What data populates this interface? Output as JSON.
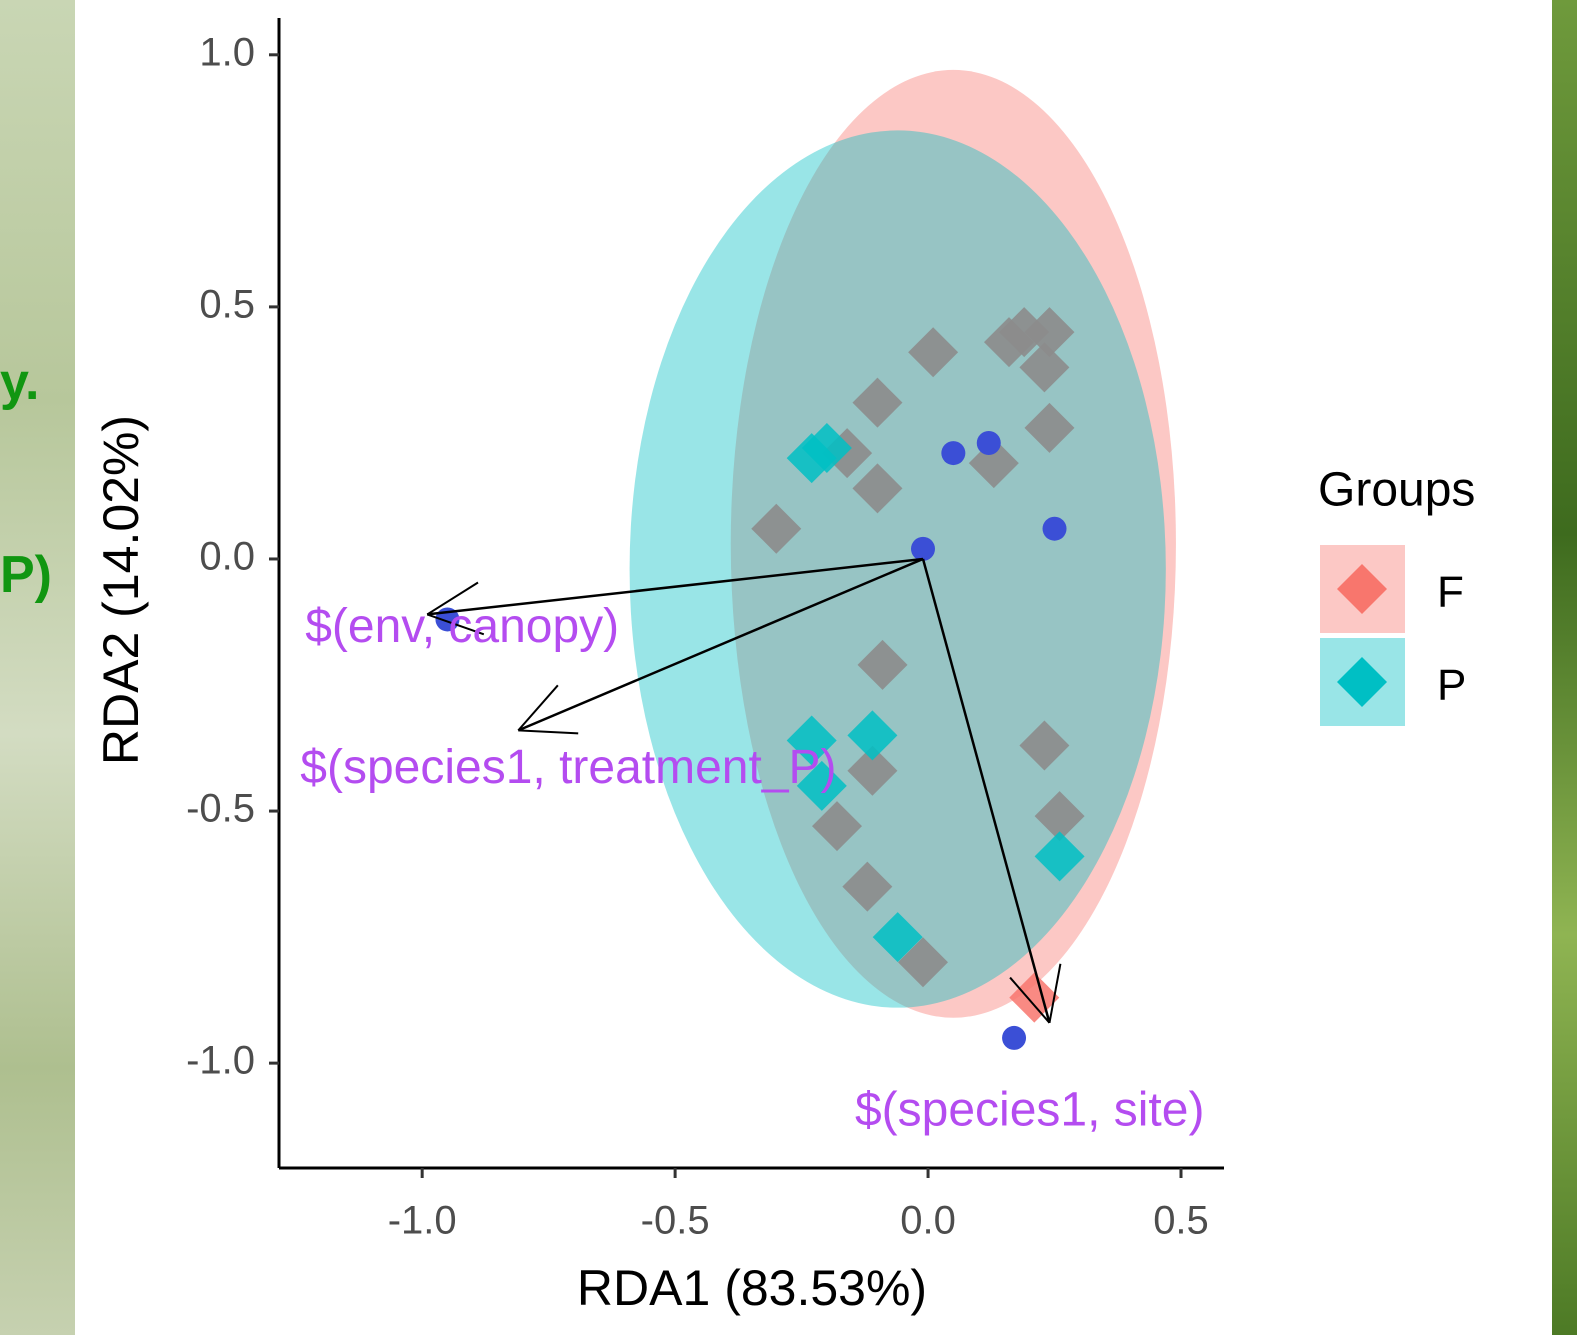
{
  "slide": {
    "fragments": [
      "y.",
      "P)"
    ]
  },
  "chart_data": {
    "type": "scatter",
    "xlabel": "RDA1 (83.53%)",
    "ylabel": "RDA2 (14.02%)",
    "legend_title": "Groups",
    "legend": "right",
    "xlim": [
      -1.283,
      0.585
    ],
    "ylim": [
      -1.208,
      1.073
    ],
    "xticks": [
      {
        "value": -1,
        "label": "-1.0"
      },
      -0.5,
      {
        "value": 0,
        "label": "0.0"
      },
      0.5
    ],
    "yticks": [
      {
        "value": -1,
        "label": "-1.0"
      },
      -0.5,
      {
        "value": 0,
        "label": "0.0"
      },
      0.5,
      {
        "value": 1,
        "label": "1.0"
      }
    ],
    "series": [
      {
        "name": "F",
        "color": "#F8766D",
        "x": [
          0.21
        ],
        "y": [
          -0.87
        ],
        "ellipse": {
          "cx": 0.05,
          "cy": 0.03,
          "rx": 0.44,
          "ry": 0.94
        }
      },
      {
        "name": "P",
        "color": "#00BFC4",
        "x": [
          -0.23,
          -0.2,
          -0.23,
          -0.11,
          -0.21,
          0.26,
          -0.06
        ],
        "y": [
          0.2,
          0.22,
          -0.36,
          -0.35,
          -0.45,
          -0.59,
          -0.75
        ],
        "ellipse": {
          "cx": -0.06,
          "cy": -0.02,
          "rx": 0.53,
          "ry": 0.87
        }
      },
      {
        "color": "#8c8c8c",
        "x": [
          0.01,
          0.16,
          0.19,
          0.24,
          0.23,
          -0.1,
          0.24,
          -0.16,
          0.13,
          -0.1,
          -0.3,
          -0.09,
          0.23,
          -0.11,
          -0.18,
          0.26,
          -0.12,
          -0.01
        ],
        "y": [
          0.41,
          0.43,
          0.45,
          0.45,
          0.38,
          0.31,
          0.26,
          0.21,
          0.19,
          0.14,
          0.06,
          -0.21,
          -0.37,
          -0.42,
          -0.53,
          -0.51,
          -0.65,
          -0.8
        ]
      },
      {
        "color": "#3b4fd6",
        "x": [
          0.05,
          0.12,
          0.25,
          -0.01,
          -0.95,
          0.17
        ],
        "y": [
          0.21,
          0.23,
          0.06,
          0.02,
          -0.12,
          -0.95
        ]
      }
    ],
    "arrows": [
      {
        "label": "$(env, canopy)",
        "from": [
          -0.01,
          0.0
        ],
        "to": [
          -0.99,
          -0.11
        ]
      },
      {
        "label": "$(species1, treatment_P)",
        "from": [
          -0.01,
          0.0
        ],
        "to": [
          -0.81,
          -0.34
        ]
      },
      {
        "label": "$(species1, site)",
        "from": [
          -0.01,
          0.0
        ],
        "to": [
          0.24,
          -0.92
        ]
      }
    ]
  }
}
